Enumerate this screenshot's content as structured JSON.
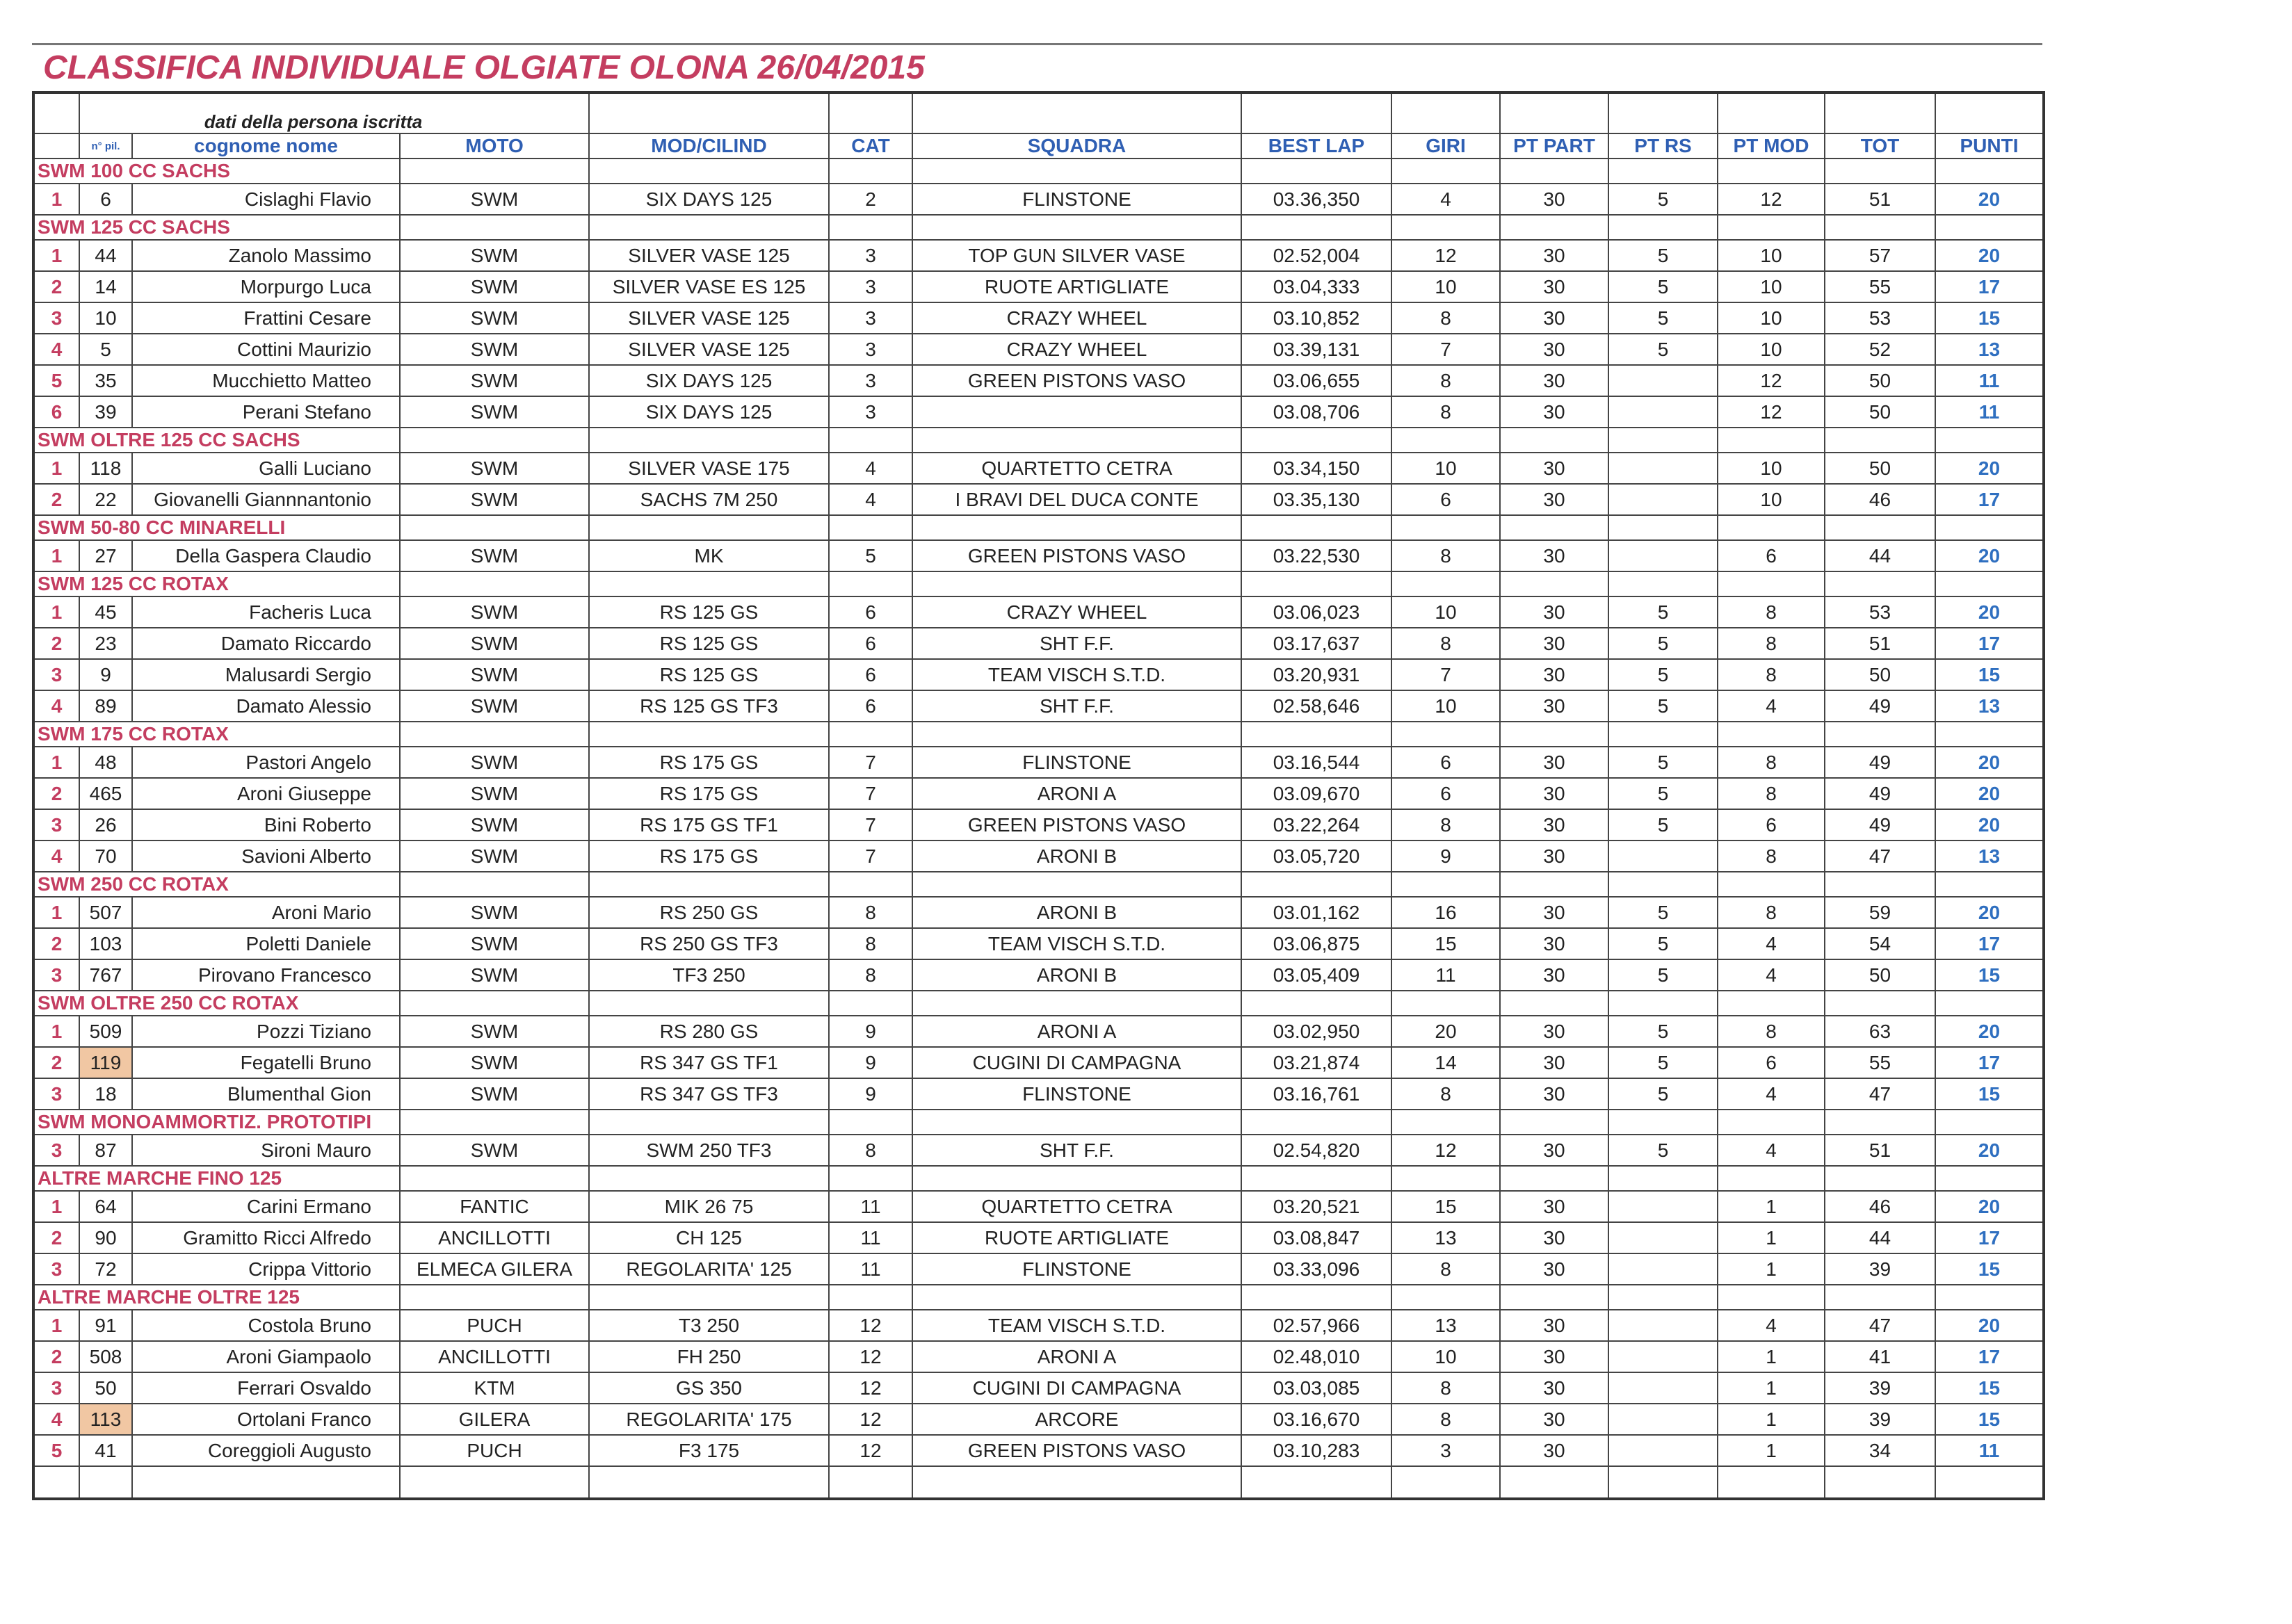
{
  "title": "CLASSIFICA INDIVIDUALE OLGIATE OLONA 26/04/2015",
  "highlight_color": "#f1c7a3",
  "table": {
    "header_group": "dati della persona iscritta",
    "columns": [
      "n° pil.",
      "cognome nome",
      "MOTO",
      "MOD/CILIND",
      "CAT",
      "SQUADRA",
      "BEST LAP",
      "GIRI",
      "PT PART",
      "PT RS",
      "PT MOD",
      "TOT",
      "PUNTI"
    ],
    "sections": [
      {
        "title": "SWM 100 CC SACHS",
        "rows": [
          [
            1,
            6,
            "Cislaghi Flavio",
            "SWM",
            "SIX DAYS 125",
            2,
            "FLINSTONE",
            "03.36,350",
            4,
            30,
            5,
            12,
            51,
            20
          ]
        ]
      },
      {
        "title": "SWM 125 CC SACHS",
        "rows": [
          [
            1,
            44,
            "Zanolo Massimo",
            "SWM",
            "SILVER VASE 125",
            3,
            "TOP GUN SILVER VASE",
            "02.52,004",
            12,
            30,
            5,
            10,
            57,
            20
          ],
          [
            2,
            14,
            "Morpurgo Luca",
            "SWM",
            "SILVER VASE ES 125",
            3,
            "RUOTE ARTIGLIATE",
            "03.04,333",
            10,
            30,
            5,
            10,
            55,
            17
          ],
          [
            3,
            10,
            "Frattini Cesare",
            "SWM",
            "SILVER VASE 125",
            3,
            "CRAZY WHEEL",
            "03.10,852",
            8,
            30,
            5,
            10,
            53,
            15
          ],
          [
            4,
            5,
            "Cottini Maurizio",
            "SWM",
            "SILVER VASE 125",
            3,
            "CRAZY WHEEL",
            "03.39,131",
            7,
            30,
            5,
            10,
            52,
            13
          ],
          [
            5,
            35,
            "Mucchietto Matteo",
            "SWM",
            "SIX DAYS 125",
            3,
            "GREEN PISTONS VASO",
            "03.06,655",
            8,
            30,
            null,
            12,
            50,
            11
          ],
          [
            6,
            39,
            "Perani Stefano",
            "SWM",
            "SIX DAYS 125",
            3,
            null,
            "03.08,706",
            8,
            30,
            null,
            12,
            50,
            11
          ]
        ]
      },
      {
        "title": "SWM OLTRE 125 CC SACHS",
        "rows": [
          [
            1,
            118,
            "Galli Luciano",
            "SWM",
            "SILVER VASE 175",
            4,
            "QUARTETTO CETRA",
            "03.34,150",
            10,
            30,
            null,
            10,
            50,
            20
          ],
          [
            2,
            22,
            "Giovanelli Giannnantonio",
            "SWM",
            "SACHS 7M 250",
            4,
            "I BRAVI DEL DUCA CONTE",
            "03.35,130",
            6,
            30,
            null,
            10,
            46,
            17
          ]
        ]
      },
      {
        "title": "SWM 50-80 CC MINARELLI",
        "rows": [
          [
            1,
            27,
            "Della Gaspera Claudio",
            "SWM",
            "MK",
            5,
            "GREEN PISTONS VASO",
            "03.22,530",
            8,
            30,
            null,
            6,
            44,
            20
          ]
        ]
      },
      {
        "title": "SWM 125 CC ROTAX",
        "rows": [
          [
            1,
            45,
            "Facheris Luca",
            "SWM",
            "RS 125 GS",
            6,
            "CRAZY WHEEL",
            "03.06,023",
            10,
            30,
            5,
            8,
            53,
            20
          ],
          [
            2,
            23,
            "Damato Riccardo",
            "SWM",
            "RS 125 GS",
            6,
            "SHT F.F.",
            "03.17,637",
            8,
            30,
            5,
            8,
            51,
            17
          ],
          [
            3,
            9,
            "Malusardi Sergio",
            "SWM",
            "RS 125 GS",
            6,
            "TEAM VISCH S.T.D.",
            "03.20,931",
            7,
            30,
            5,
            8,
            50,
            15
          ],
          [
            4,
            89,
            "Damato Alessio",
            "SWM",
            "RS 125 GS TF3",
            6,
            "SHT F.F.",
            "02.58,646",
            10,
            30,
            5,
            4,
            49,
            13
          ]
        ]
      },
      {
        "title": "SWM 175 CC ROTAX",
        "rows": [
          [
            1,
            48,
            "Pastori Angelo",
            "SWM",
            "RS 175 GS",
            7,
            "FLINSTONE",
            "03.16,544",
            6,
            30,
            5,
            8,
            49,
            20
          ],
          [
            2,
            465,
            "Aroni Giuseppe",
            "SWM",
            "RS 175 GS",
            7,
            "ARONI A",
            "03.09,670",
            6,
            30,
            5,
            8,
            49,
            20
          ],
          [
            3,
            26,
            "Bini Roberto",
            "SWM",
            "RS 175 GS TF1",
            7,
            "GREEN PISTONS VASO",
            "03.22,264",
            8,
            30,
            5,
            6,
            49,
            20
          ],
          [
            4,
            70,
            "Savioni Alberto",
            "SWM",
            "RS 175 GS",
            7,
            "ARONI B",
            "03.05,720",
            9,
            30,
            null,
            8,
            47,
            13
          ]
        ]
      },
      {
        "title": "SWM 250 CC ROTAX",
        "rows": [
          [
            1,
            507,
            "Aroni Mario",
            "SWM",
            "RS 250 GS",
            8,
            "ARONI B",
            "03.01,162",
            16,
            30,
            5,
            8,
            59,
            20
          ],
          [
            2,
            103,
            "Poletti Daniele",
            "SWM",
            "RS 250 GS TF3",
            8,
            "TEAM VISCH S.T.D.",
            "03.06,875",
            15,
            30,
            5,
            4,
            54,
            17
          ],
          [
            3,
            767,
            "Pirovano Francesco",
            "SWM",
            "TF3 250",
            8,
            "ARONI B",
            "03.05,409",
            11,
            30,
            5,
            4,
            50,
            15
          ]
        ]
      },
      {
        "title": "SWM OLTRE 250 CC ROTAX",
        "highlighted_pilot_rows": [
          1
        ],
        "rows": [
          [
            1,
            509,
            "Pozzi Tiziano",
            "SWM",
            "RS 280 GS",
            9,
            "ARONI A",
            "03.02,950",
            20,
            30,
            5,
            8,
            63,
            20
          ],
          [
            2,
            119,
            "Fegatelli Bruno",
            "SWM",
            "RS 347 GS TF1",
            9,
            "CUGINI DI CAMPAGNA",
            "03.21,874",
            14,
            30,
            5,
            6,
            55,
            17
          ],
          [
            3,
            18,
            "Blumenthal Gion",
            "SWM",
            "RS 347 GS TF3",
            9,
            "FLINSTONE",
            "03.16,761",
            8,
            30,
            5,
            4,
            47,
            15
          ]
        ]
      },
      {
        "title": "SWM MONOAMMORTIZ. PROTOTIPI",
        "rows": [
          [
            3,
            87,
            "Sironi Mauro",
            "SWM",
            "SWM 250 TF3",
            8,
            "SHT F.F.",
            "02.54,820",
            12,
            30,
            5,
            4,
            51,
            20
          ]
        ]
      },
      {
        "title": "ALTRE MARCHE FINO 125",
        "rows": [
          [
            1,
            64,
            "Carini Ermano",
            "FANTIC",
            "MIK 26 75",
            11,
            "QUARTETTO CETRA",
            "03.20,521",
            15,
            30,
            null,
            1,
            46,
            20
          ],
          [
            2,
            90,
            "Gramitto Ricci Alfredo",
            "ANCILLOTTI",
            "CH 125",
            11,
            "RUOTE ARTIGLIATE",
            "03.08,847",
            13,
            30,
            null,
            1,
            44,
            17
          ],
          [
            3,
            72,
            "Crippa Vittorio",
            "ELMECA GILERA",
            "REGOLARITA' 125",
            11,
            "FLINSTONE",
            "03.33,096",
            8,
            30,
            null,
            1,
            39,
            15
          ]
        ]
      },
      {
        "title": "ALTRE MARCHE OLTRE 125",
        "highlighted_pilot_rows": [
          3
        ],
        "rows": [
          [
            1,
            91,
            "Costola Bruno",
            "PUCH",
            "T3 250",
            12,
            "TEAM VISCH S.T.D.",
            "02.57,966",
            13,
            30,
            null,
            4,
            47,
            20
          ],
          [
            2,
            508,
            "Aroni Giampaolo",
            "ANCILLOTTI",
            "FH 250",
            12,
            "ARONI A",
            "02.48,010",
            10,
            30,
            null,
            1,
            41,
            17
          ],
          [
            3,
            50,
            "Ferrari Osvaldo",
            "KTM",
            "GS 350",
            12,
            "CUGINI DI CAMPAGNA",
            "03.03,085",
            8,
            30,
            null,
            1,
            39,
            15
          ],
          [
            4,
            113,
            "Ortolani Franco",
            "GILERA",
            "REGOLARITA' 175",
            12,
            "ARCORE",
            "03.16,670",
            8,
            30,
            null,
            1,
            39,
            15
          ],
          [
            5,
            41,
            "Coreggioli Augusto",
            "PUCH",
            "F3 175",
            12,
            "GREEN PISTONS VASO",
            "03.10,283",
            3,
            30,
            null,
            1,
            34,
            11
          ]
        ]
      }
    ]
  }
}
